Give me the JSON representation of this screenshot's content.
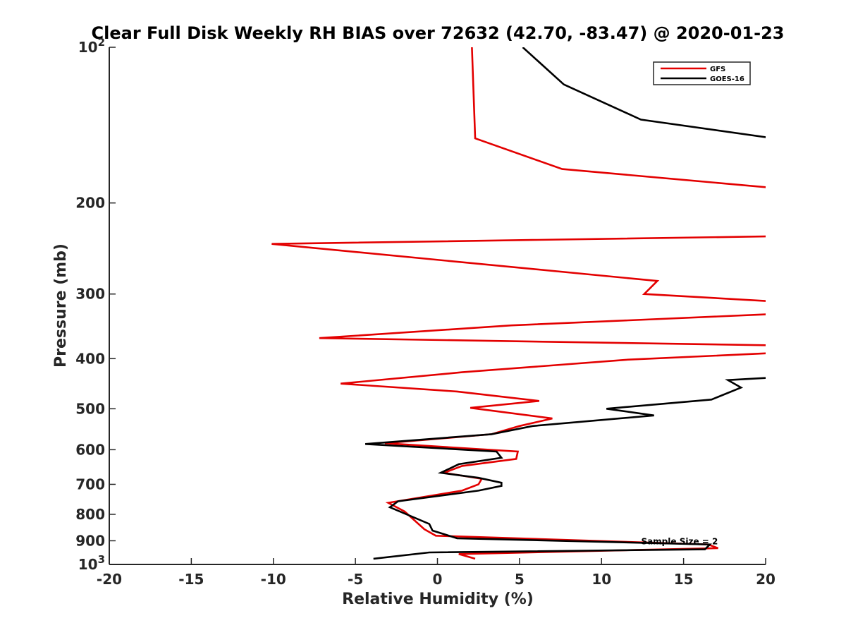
{
  "chart_data": {
    "type": "line",
    "title": "Clear Full Disk Weekly RH BIAS over 72632 (42.70, -83.47) @ 2020-01-23",
    "xlabel": "Relative Humidity (%)",
    "ylabel": "Pressure (mb)",
    "xlim": [
      -20,
      20
    ],
    "ylim": [
      100,
      1000
    ],
    "y_scale": "log",
    "y_reversed": true,
    "grid": false,
    "legend_position": "top-right",
    "x_ticks": [
      "-20",
      "-15",
      "-10",
      "-5",
      "0",
      "5",
      "10",
      "15",
      "20"
    ],
    "y_ticks": [
      {
        "value": 100,
        "label": "10",
        "sup": "2"
      },
      {
        "value": 200,
        "label": "200"
      },
      {
        "value": 300,
        "label": "300"
      },
      {
        "value": 400,
        "label": "400"
      },
      {
        "value": 500,
        "label": "500"
      },
      {
        "value": 600,
        "label": "600"
      },
      {
        "value": 700,
        "label": "700"
      },
      {
        "value": 800,
        "label": "800"
      },
      {
        "value": 900,
        "label": "900"
      },
      {
        "value": 1000,
        "label": "10",
        "sup": "3"
      }
    ],
    "annotation": {
      "text": "Sample Size = 2",
      "x": 12.5,
      "y": 900
    },
    "series": [
      {
        "name": "GFS",
        "color": "#e30000",
        "points": [
          [
            2.1,
            100
          ],
          [
            2.3,
            150
          ],
          [
            7.6,
            172
          ],
          [
            20.5,
            187
          ],
          [
            20.5,
            232
          ],
          [
            -10.1,
            240
          ],
          [
            13.4,
            283
          ],
          [
            12.6,
            300
          ],
          [
            20.5,
            310
          ],
          [
            20.5,
            328
          ],
          [
            4.5,
            345
          ],
          [
            -7.2,
            365
          ],
          [
            20.5,
            377
          ],
          [
            20.5,
            390
          ],
          [
            11.5,
            402
          ],
          [
            1.5,
            425
          ],
          [
            -5.9,
            447
          ],
          [
            1.2,
            463
          ],
          [
            6.2,
            483
          ],
          [
            2.0,
            498
          ],
          [
            7.0,
            522
          ],
          [
            5.0,
            540
          ],
          [
            3.3,
            560
          ],
          [
            -3.2,
            583
          ],
          [
            4.9,
            605
          ],
          [
            4.8,
            625
          ],
          [
            1.5,
            645
          ],
          [
            0.4,
            665
          ],
          [
            2.7,
            683
          ],
          [
            2.5,
            700
          ],
          [
            1.5,
            720
          ],
          [
            -3.0,
            760
          ],
          [
            -2.0,
            790
          ],
          [
            -0.8,
            855
          ],
          [
            -0.1,
            880
          ],
          [
            16.5,
            915
          ],
          [
            17.1,
            930
          ],
          [
            1.3,
            955
          ],
          [
            2.3,
            975
          ]
        ]
      },
      {
        "name": "GOES-16",
        "color": "#000000",
        "points": [
          [
            5.2,
            100
          ],
          [
            7.7,
            118
          ],
          [
            12.4,
            138
          ],
          [
            20.5,
            150
          ],
          [
            20.5,
            435
          ],
          [
            17.7,
            440
          ],
          [
            18.5,
            455
          ],
          [
            16.7,
            480
          ],
          [
            10.3,
            500
          ],
          [
            13.2,
            515
          ],
          [
            5.8,
            540
          ],
          [
            3.3,
            560
          ],
          [
            -4.4,
            585
          ],
          [
            3.6,
            605
          ],
          [
            3.9,
            622
          ],
          [
            1.3,
            640
          ],
          [
            0.2,
            665
          ],
          [
            2.5,
            680
          ],
          [
            3.9,
            695
          ],
          [
            3.9,
            705
          ],
          [
            2.5,
            720
          ],
          [
            -2.4,
            755
          ],
          [
            -2.9,
            775
          ],
          [
            -0.5,
            835
          ],
          [
            -0.3,
            860
          ],
          [
            1.2,
            890
          ],
          [
            16.6,
            915
          ],
          [
            16.3,
            935
          ],
          [
            -0.5,
            948
          ],
          [
            -3.9,
            975
          ]
        ]
      }
    ]
  }
}
